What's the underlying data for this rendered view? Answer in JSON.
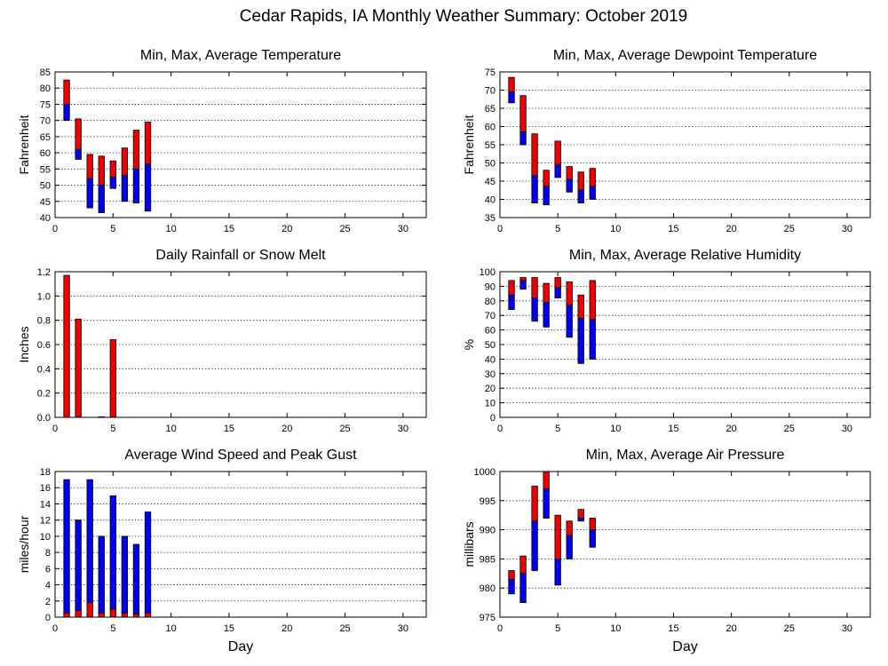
{
  "figure": {
    "title": "Cedar Rapids, IA Monthly Weather Summary: October 2019",
    "colors": {
      "upper": "#ee0000",
      "lower": "#0000ee",
      "edge": "#000000"
    }
  },
  "chart_data": [
    {
      "id": "temp",
      "type": "bar",
      "title": "Min, Max, Average Temperature",
      "ylabel": "Fahrenheit",
      "xlabel": "",
      "xlim": [
        0,
        32
      ],
      "ylim": [
        40,
        85
      ],
      "yticks": [
        40,
        45,
        50,
        55,
        60,
        65,
        70,
        75,
        80,
        85
      ],
      "xticks": [
        0,
        5,
        10,
        15,
        20,
        25,
        30
      ],
      "grid": true,
      "style": "floating-range",
      "days": [
        1,
        2,
        3,
        4,
        5,
        6,
        7,
        8
      ],
      "min": [
        70,
        58,
        43,
        41.5,
        49,
        45,
        44.5,
        42
      ],
      "avg": [
        75,
        61,
        52,
        50,
        52.5,
        53,
        55,
        56.5
      ],
      "max": [
        82.5,
        70.5,
        59.5,
        59,
        57.5,
        61.5,
        67,
        69.5
      ]
    },
    {
      "id": "dewpoint",
      "type": "bar",
      "title": "Min, Max, Average Dewpoint Temperature",
      "ylabel": "Fahrenheit",
      "xlabel": "",
      "xlim": [
        0,
        32
      ],
      "ylim": [
        35,
        75
      ],
      "yticks": [
        35,
        40,
        45,
        50,
        55,
        60,
        65,
        70,
        75
      ],
      "xticks": [
        0,
        5,
        10,
        15,
        20,
        25,
        30
      ],
      "grid": true,
      "style": "floating-range",
      "days": [
        1,
        2,
        3,
        4,
        5,
        6,
        7,
        8
      ],
      "min": [
        66.5,
        55,
        39,
        38.5,
        46,
        42,
        39,
        40
      ],
      "avg": [
        69.5,
        58.5,
        46.5,
        43.5,
        49.5,
        45.5,
        42.5,
        43.5
      ],
      "max": [
        73.5,
        68.5,
        58,
        48,
        56,
        49,
        47.5,
        48.5
      ]
    },
    {
      "id": "rain",
      "type": "bar",
      "title": "Daily Rainfall or Snow Melt",
      "ylabel": "Inches",
      "xlabel": "",
      "xlim": [
        0,
        32
      ],
      "ylim": [
        0,
        1.2
      ],
      "yticks": [
        0,
        0.2,
        0.4,
        0.6,
        0.8,
        1.0,
        1.2
      ],
      "ytick_labels": [
        "0.0",
        "0.2",
        "0.4",
        "0.6",
        "0.8",
        "1.0",
        "1.2"
      ],
      "xticks": [
        0,
        5,
        10,
        15,
        20,
        25,
        30
      ],
      "grid": true,
      "style": "simple",
      "days": [
        1,
        2,
        3,
        4,
        5,
        6,
        7,
        8
      ],
      "values": [
        1.17,
        0.81,
        0,
        0.005,
        0.64,
        0,
        0,
        0
      ]
    },
    {
      "id": "humidity",
      "type": "bar",
      "title": "Min, Max, Average Relative Humidity",
      "ylabel": "%",
      "xlabel": "",
      "xlim": [
        0,
        32
      ],
      "ylim": [
        0,
        100
      ],
      "yticks": [
        0,
        10,
        20,
        30,
        40,
        50,
        60,
        70,
        80,
        90,
        100
      ],
      "xticks": [
        0,
        5,
        10,
        15,
        20,
        25,
        30
      ],
      "grid": true,
      "style": "floating-range",
      "days": [
        1,
        2,
        3,
        4,
        5,
        6,
        7,
        8
      ],
      "min": [
        74,
        88,
        66,
        62,
        82,
        55,
        37,
        40
      ],
      "avg": [
        84,
        94,
        82,
        79,
        89,
        77,
        68,
        67
      ],
      "max": [
        94,
        96,
        96,
        92,
        96,
        93,
        84,
        94
      ]
    },
    {
      "id": "wind",
      "type": "bar",
      "title": "Average Wind Speed and Peak Gust",
      "ylabel": "miles/hour",
      "xlabel": "Day",
      "xlim": [
        0,
        32
      ],
      "ylim": [
        0,
        18
      ],
      "yticks": [
        0,
        2,
        4,
        6,
        8,
        10,
        12,
        14,
        16,
        18
      ],
      "xticks": [
        0,
        5,
        10,
        15,
        20,
        25,
        30
      ],
      "grid": true,
      "style": "stacked",
      "days": [
        1,
        2,
        3,
        4,
        5,
        6,
        7,
        8
      ],
      "average": [
        0.5,
        0.8,
        1.8,
        0.5,
        1.0,
        0.5,
        0.4,
        0.5
      ],
      "peak_gust": [
        17,
        12,
        17,
        10,
        15,
        10,
        9,
        13
      ]
    },
    {
      "id": "pressure",
      "type": "bar",
      "title": "Min, Max, Average Air Pressure",
      "ylabel": "millibars",
      "xlabel": "Day",
      "xlim": [
        0,
        32
      ],
      "ylim": [
        975,
        1000
      ],
      "yticks": [
        975,
        980,
        985,
        990,
        995,
        1000
      ],
      "xticks": [
        0,
        5,
        10,
        15,
        20,
        25,
        30
      ],
      "grid": true,
      "style": "floating-range",
      "days": [
        1,
        2,
        3,
        4,
        5,
        6,
        7,
        8
      ],
      "min": [
        979,
        977.5,
        983,
        992,
        980.5,
        985,
        991.5,
        987
      ],
      "avg": [
        981.5,
        982.5,
        991.5,
        997,
        985,
        989,
        992,
        990
      ],
      "max": [
        983,
        985.5,
        997.5,
        1000,
        992.5,
        991.5,
        993.5,
        992
      ]
    }
  ]
}
